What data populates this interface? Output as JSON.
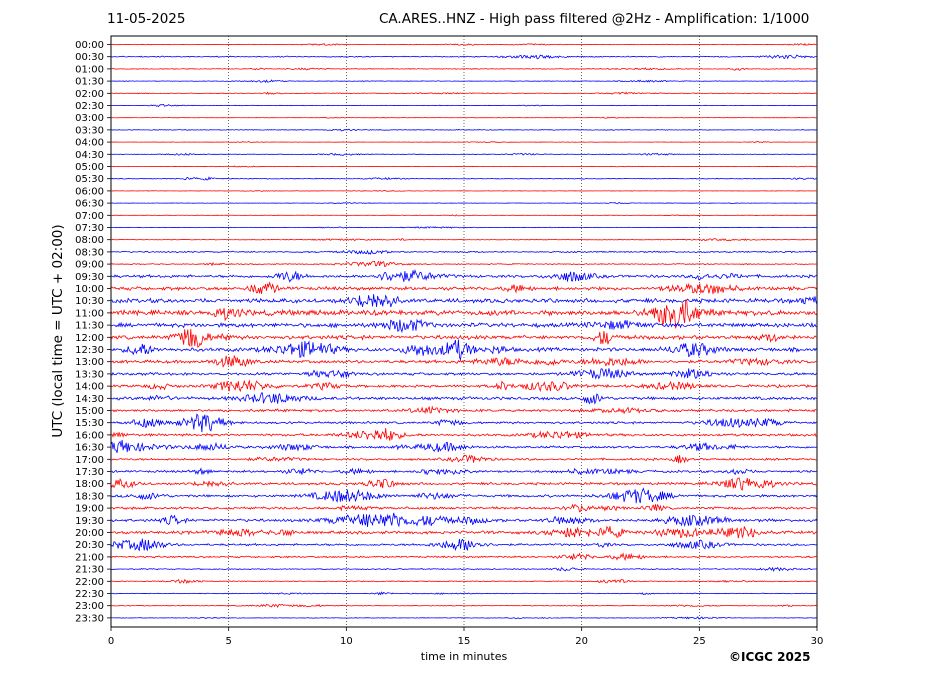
{
  "header": {
    "date": "11-05-2025",
    "title": "CA.ARES..HNZ - High pass filtered @2Hz - Amplification: 1/1000"
  },
  "footer": {
    "credit": "©ICGC 2025"
  },
  "chart_data": {
    "type": "line",
    "chart_kind": "helicorder seismogram",
    "xlabel": "time in minutes",
    "ylabel": "UTC (local time = UTC + 02:00)",
    "xlim": [
      0,
      30
    ],
    "xticks": [
      0,
      5,
      10,
      15,
      20,
      25,
      30
    ],
    "grid": "vertical dotted lines at 5-minute intervals",
    "colors": {
      "odd": "#ff0000",
      "even": "#0000ff"
    },
    "row_labels": [
      "00:00",
      "00:30",
      "01:00",
      "01:30",
      "02:00",
      "02:30",
      "03:00",
      "03:30",
      "04:00",
      "04:30",
      "05:00",
      "05:30",
      "06:00",
      "06:30",
      "07:00",
      "07:30",
      "08:00",
      "08:30",
      "09:00",
      "09:30",
      "10:00",
      "10:30",
      "11:00",
      "11:30",
      "12:00",
      "12:30",
      "13:00",
      "13:30",
      "14:00",
      "14:30",
      "15:00",
      "15:30",
      "16:00",
      "16:30",
      "17:00",
      "17:30",
      "18:00",
      "18:30",
      "19:00",
      "19:30",
      "20:00",
      "20:30",
      "21:00",
      "21:30",
      "22:00",
      "22:30",
      "23:00",
      "23:30"
    ],
    "row_colors": [
      "#ff0000",
      "#0000ff",
      "#ff0000",
      "#0000ff",
      "#ff0000",
      "#0000ff",
      "#ff0000",
      "#0000ff",
      "#ff0000",
      "#0000ff",
      "#ff0000",
      "#0000ff",
      "#ff0000",
      "#0000ff",
      "#ff0000",
      "#0000ff",
      "#ff0000",
      "#0000ff",
      "#ff0000",
      "#0000ff",
      "#ff0000",
      "#0000ff",
      "#ff0000",
      "#0000ff",
      "#ff0000",
      "#0000ff",
      "#ff0000",
      "#0000ff",
      "#ff0000",
      "#0000ff",
      "#ff0000",
      "#0000ff",
      "#ff0000",
      "#0000ff",
      "#ff0000",
      "#0000ff",
      "#ff0000",
      "#0000ff",
      "#ff0000",
      "#0000ff",
      "#ff0000",
      "#0000ff",
      "#ff0000",
      "#0000ff",
      "#ff0000",
      "#0000ff",
      "#ff0000",
      "#0000ff"
    ],
    "row_amplitude": [
      0.3,
      0.6,
      0.4,
      0.3,
      0.4,
      0.3,
      0.2,
      0.4,
      0.2,
      0.3,
      0.2,
      0.4,
      0.2,
      0.2,
      0.2,
      0.3,
      0.3,
      0.8,
      0.6,
      1.6,
      2.0,
      2.4,
      3.0,
      2.4,
      2.3,
      2.2,
      1.7,
      1.5,
      1.5,
      1.7,
      1.5,
      1.3,
      1.4,
      1.3,
      1.2,
      1.3,
      1.4,
      1.4,
      1.4,
      1.6,
      1.7,
      1.2,
      1.0,
      0.6,
      0.5,
      0.4,
      0.4,
      0.3
    ]
  }
}
